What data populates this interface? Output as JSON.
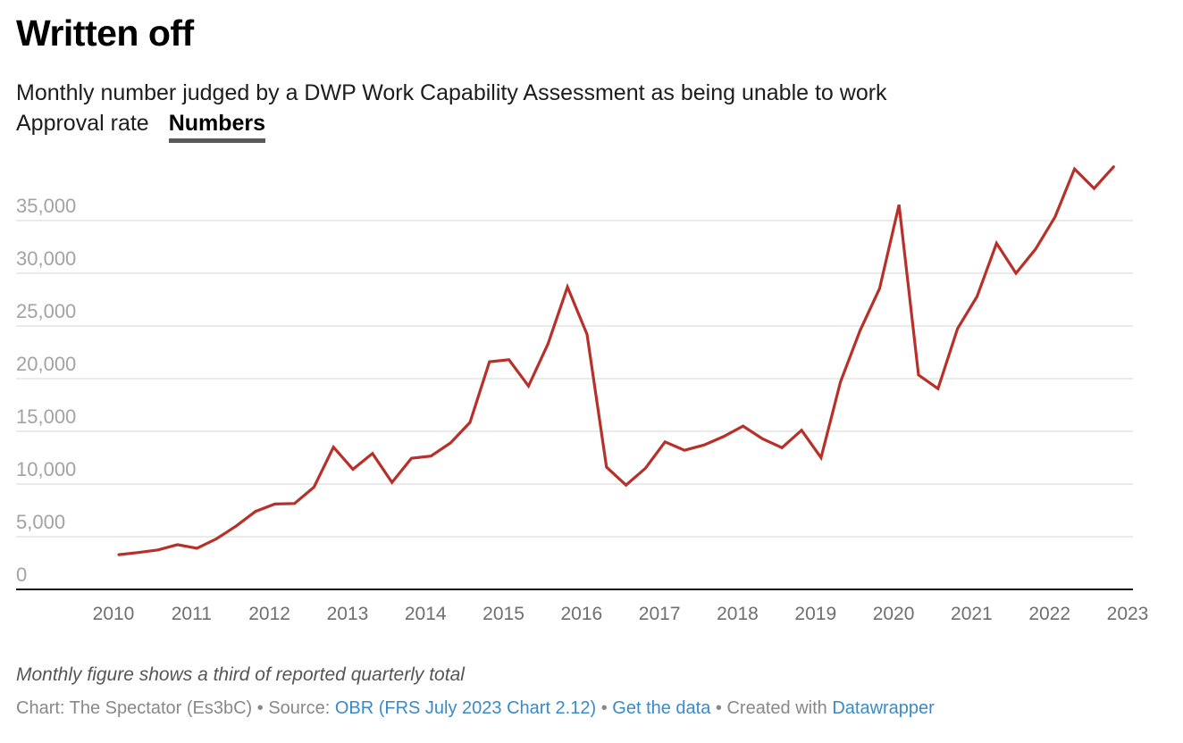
{
  "header": {
    "title": "Written off",
    "subtitle": "Monthly number judged by a DWP Work Capability Assessment as being unable to work",
    "tabs": [
      {
        "label": "Approval rate",
        "active": false
      },
      {
        "label": "Numbers",
        "active": true
      }
    ]
  },
  "footer": {
    "note": "Monthly figure shows a third of reported quarterly total",
    "chart_credit": "Chart: The Spectator (Es3bC)",
    "separator": " • ",
    "source_label": "Source: ",
    "source_link": "OBR (FRS July 2023 Chart 2.12)",
    "get_data_link": "Get the data",
    "created_with": "Created with ",
    "datawrapper_link": "Datawrapper"
  },
  "colors": {
    "line": "#b8302a",
    "grid": "#e3e3e3",
    "axis": "#111111",
    "link": "#3a8ac8"
  },
  "chart_data": {
    "type": "line",
    "title": "Written off",
    "subtitle": "Monthly number judged by a DWP Work Capability Assessment as being unable to work",
    "xlabel": "",
    "ylabel": "",
    "ylim": [
      0,
      40000
    ],
    "xlim": [
      2010,
      2023
    ],
    "y_ticks": [
      0,
      5000,
      10000,
      15000,
      20000,
      25000,
      30000,
      35000
    ],
    "y_tick_labels": [
      "0",
      "5,000",
      "10,000",
      "15,000",
      "20,000",
      "25,000",
      "30,000",
      "35,000"
    ],
    "x_ticks": [
      2010,
      2011,
      2012,
      2013,
      2014,
      2015,
      2016,
      2017,
      2018,
      2019,
      2020,
      2021,
      2022,
      2023
    ],
    "x_tick_labels": [
      "2010",
      "2011",
      "2012",
      "2013",
      "2014",
      "2015",
      "2016",
      "2017",
      "2018",
      "2019",
      "2020",
      "2021",
      "2022",
      "2023"
    ],
    "grid": true,
    "legend": "none",
    "series": [
      {
        "name": "Numbers",
        "x": [
          2010.07,
          2010.32,
          2010.57,
          2010.82,
          2011.07,
          2011.32,
          2011.57,
          2011.82,
          2012.07,
          2012.32,
          2012.57,
          2012.82,
          2013.07,
          2013.32,
          2013.57,
          2013.82,
          2014.07,
          2014.32,
          2014.57,
          2014.82,
          2015.07,
          2015.32,
          2015.57,
          2015.82,
          2016.07,
          2016.32,
          2016.57,
          2016.82,
          2017.07,
          2017.32,
          2017.57,
          2017.82,
          2018.07,
          2018.32,
          2018.57,
          2018.82,
          2019.07,
          2019.32,
          2019.57,
          2019.82,
          2020.07,
          2020.32,
          2020.57,
          2020.82,
          2021.07,
          2021.32,
          2021.57,
          2021.82,
          2022.07,
          2022.32,
          2022.57,
          2022.82
        ],
        "values": [
          3300,
          3500,
          3750,
          4250,
          3900,
          4800,
          6000,
          7400,
          8100,
          8150,
          9700,
          13500,
          11400,
          12900,
          10150,
          12450,
          12650,
          13900,
          15850,
          21600,
          21800,
          19300,
          23300,
          28700,
          24200,
          11600,
          9900,
          11500,
          14000,
          13200,
          13700,
          14500,
          15500,
          14300,
          13450,
          15100,
          12500,
          19700,
          24550,
          28550,
          36500,
          20350,
          19050,
          24750,
          27800,
          32850,
          30000,
          32300,
          35350,
          39900,
          38050,
          40100
        ]
      }
    ]
  }
}
